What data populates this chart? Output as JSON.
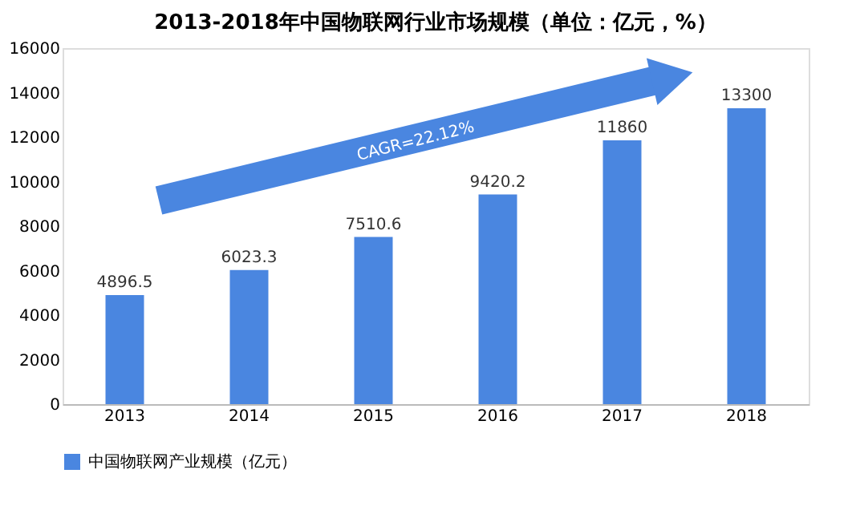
{
  "chart_data": {
    "type": "bar",
    "title": "2013-2018年中国物联网行业市场规模（单位：亿元，%）",
    "categories": [
      "2013",
      "2014",
      "2015",
      "2016",
      "2017",
      "2018"
    ],
    "series": [
      {
        "name": "中国物联网产业规模（亿元）",
        "color": "#4a86e0",
        "values": [
          4896.5,
          6023.3,
          7510.6,
          9420.2,
          11860,
          13300
        ]
      }
    ],
    "ylim": [
      0,
      16000
    ],
    "yticks": [
      0,
      2000,
      4000,
      6000,
      8000,
      10000,
      12000,
      14000,
      16000
    ],
    "data_labels": true,
    "legend": "bottom",
    "grid": false,
    "annotations": [
      "CAGR=22.12%"
    ]
  }
}
